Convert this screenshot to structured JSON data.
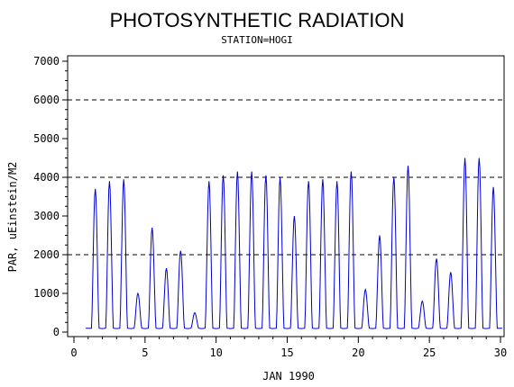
{
  "chart_data": {
    "type": "line",
    "title": "PHOTOSYNTHETIC RADIATION",
    "subtitle": "STATION=HOGI",
    "xlabel": "JAN 1990",
    "ylabel": "PAR, uEinstein/M2",
    "xlim": [
      0,
      30
    ],
    "ylim": [
      0,
      7000
    ],
    "xticks": [
      0,
      5,
      10,
      15,
      20,
      25,
      30
    ],
    "yticks": [
      0,
      1000,
      2000,
      3000,
      4000,
      5000,
      6000,
      7000
    ],
    "reference_lines": [
      2000,
      4000,
      6000
    ],
    "grid": false,
    "series": [
      {
        "color": "#0000cc",
        "daily_peaks": [
          {
            "day": 1.5,
            "value": 3700
          },
          {
            "day": 2.5,
            "value": 3900
          },
          {
            "day": 3.5,
            "value": 3950
          },
          {
            "day": 4.5,
            "value": 1000
          },
          {
            "day": 5.5,
            "value": 2700
          },
          {
            "day": 6.5,
            "value": 1650
          },
          {
            "day": 7.5,
            "value": 2100
          },
          {
            "day": 8.5,
            "value": 500
          },
          {
            "day": 9.5,
            "value": 3900
          },
          {
            "day": 10.5,
            "value": 4050
          },
          {
            "day": 11.5,
            "value": 4150
          },
          {
            "day": 12.5,
            "value": 4150
          },
          {
            "day": 13.5,
            "value": 4050
          },
          {
            "day": 14.5,
            "value": 4000
          },
          {
            "day": 15.5,
            "value": 3000
          },
          {
            "day": 16.5,
            "value": 3900
          },
          {
            "day": 17.5,
            "value": 3950
          },
          {
            "day": 18.5,
            "value": 3900
          },
          {
            "day": 19.5,
            "value": 4150
          },
          {
            "day": 20.5,
            "value": 1100
          },
          {
            "day": 21.5,
            "value": 2500
          },
          {
            "day": 22.5,
            "value": 4000
          },
          {
            "day": 23.5,
            "value": 4300
          },
          {
            "day": 24.5,
            "value": 800
          },
          {
            "day": 25.5,
            "value": 1900
          },
          {
            "day": 26.5,
            "value": 1550
          },
          {
            "day": 27.5,
            "value": 4500
          },
          {
            "day": 28.5,
            "value": 4500
          },
          {
            "day": 29.5,
            "value": 3750
          }
        ],
        "night_value": 100
      }
    ]
  }
}
